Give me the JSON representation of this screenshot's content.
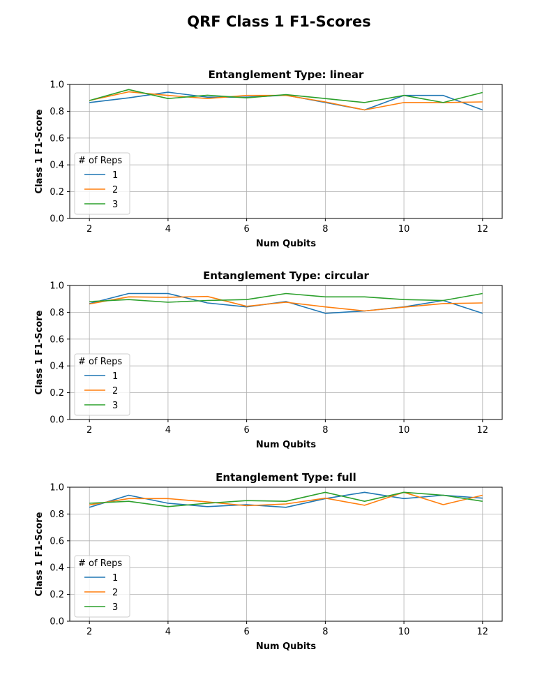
{
  "figure": {
    "suptitle": "QRF Class 1 F1-Scores"
  },
  "chart_data": [
    {
      "type": "line",
      "title": "Entanglement Type: linear",
      "xlabel": "Num Qubits",
      "ylabel": "Class 1 F1-Score",
      "xlim": [
        1.5,
        12.5
      ],
      "ylim": [
        0.0,
        1.0
      ],
      "xticks": [
        2,
        4,
        6,
        8,
        10,
        12
      ],
      "yticks": [
        "0.0",
        "0.2",
        "0.4",
        "0.6",
        "0.8",
        "1.0"
      ],
      "grid": true,
      "legend": {
        "title": "# of Reps",
        "placement": "center-left"
      },
      "x": [
        2,
        3,
        4,
        5,
        6,
        7,
        8,
        9,
        10,
        11,
        12
      ],
      "series": [
        {
          "name": "1",
          "color": "#1f77b4",
          "values": [
            0.865,
            0.9,
            0.942,
            0.905,
            0.905,
            0.92,
            0.865,
            0.81,
            0.918,
            0.918,
            0.81
          ]
        },
        {
          "name": "2",
          "color": "#ff7f0e",
          "values": [
            0.88,
            0.945,
            0.918,
            0.895,
            0.918,
            0.918,
            0.87,
            0.81,
            0.865,
            0.865,
            0.87
          ]
        },
        {
          "name": "3",
          "color": "#2ca02c",
          "values": [
            0.88,
            0.962,
            0.895,
            0.92,
            0.9,
            0.924,
            0.895,
            0.865,
            0.918,
            0.865,
            0.94
          ]
        }
      ]
    },
    {
      "type": "line",
      "title": "Entanglement Type: circular",
      "xlabel": "Num Qubits",
      "ylabel": "Class 1 F1-Score",
      "xlim": [
        1.5,
        12.5
      ],
      "ylim": [
        0.0,
        1.0
      ],
      "xticks": [
        2,
        4,
        6,
        8,
        10,
        12
      ],
      "yticks": [
        "0.0",
        "0.2",
        "0.4",
        "0.6",
        "0.8",
        "1.0"
      ],
      "grid": true,
      "legend": {
        "title": "# of Reps",
        "placement": "center-left"
      },
      "x": [
        2,
        3,
        4,
        5,
        6,
        7,
        8,
        9,
        10,
        11,
        12
      ],
      "series": [
        {
          "name": "1",
          "color": "#1f77b4",
          "values": [
            0.865,
            0.94,
            0.94,
            0.87,
            0.84,
            0.88,
            0.792,
            0.81,
            0.84,
            0.888,
            0.792
          ]
        },
        {
          "name": "2",
          "color": "#ff7f0e",
          "values": [
            0.862,
            0.915,
            0.912,
            0.918,
            0.845,
            0.875,
            0.84,
            0.81,
            0.838,
            0.865,
            0.87
          ]
        },
        {
          "name": "3",
          "color": "#2ca02c",
          "values": [
            0.88,
            0.895,
            0.875,
            0.888,
            0.895,
            0.94,
            0.915,
            0.915,
            0.895,
            0.888,
            0.94
          ]
        }
      ]
    },
    {
      "type": "line",
      "title": "Entanglement Type: full",
      "xlabel": "Num Qubits",
      "ylabel": "Class 1 F1-Score",
      "xlim": [
        1.5,
        12.5
      ],
      "ylim": [
        0.0,
        1.0
      ],
      "xticks": [
        2,
        4,
        6,
        8,
        10,
        12
      ],
      "yticks": [
        "0.0",
        "0.2",
        "0.4",
        "0.6",
        "0.8",
        "1.0"
      ],
      "grid": true,
      "legend": {
        "title": "# of Reps",
        "placement": "center-left"
      },
      "x": [
        2,
        3,
        4,
        5,
        6,
        7,
        8,
        9,
        10,
        11,
        12
      ],
      "series": [
        {
          "name": "1",
          "color": "#1f77b4",
          "values": [
            0.85,
            0.94,
            0.88,
            0.855,
            0.87,
            0.85,
            0.915,
            0.962,
            0.915,
            0.94,
            0.918
          ]
        },
        {
          "name": "2",
          "color": "#ff7f0e",
          "values": [
            0.868,
            0.915,
            0.915,
            0.89,
            0.862,
            0.875,
            0.918,
            0.865,
            0.962,
            0.87,
            0.94
          ]
        },
        {
          "name": "3",
          "color": "#2ca02c",
          "values": [
            0.88,
            0.895,
            0.855,
            0.88,
            0.9,
            0.895,
            0.962,
            0.895,
            0.962,
            0.94,
            0.895
          ]
        }
      ]
    }
  ]
}
